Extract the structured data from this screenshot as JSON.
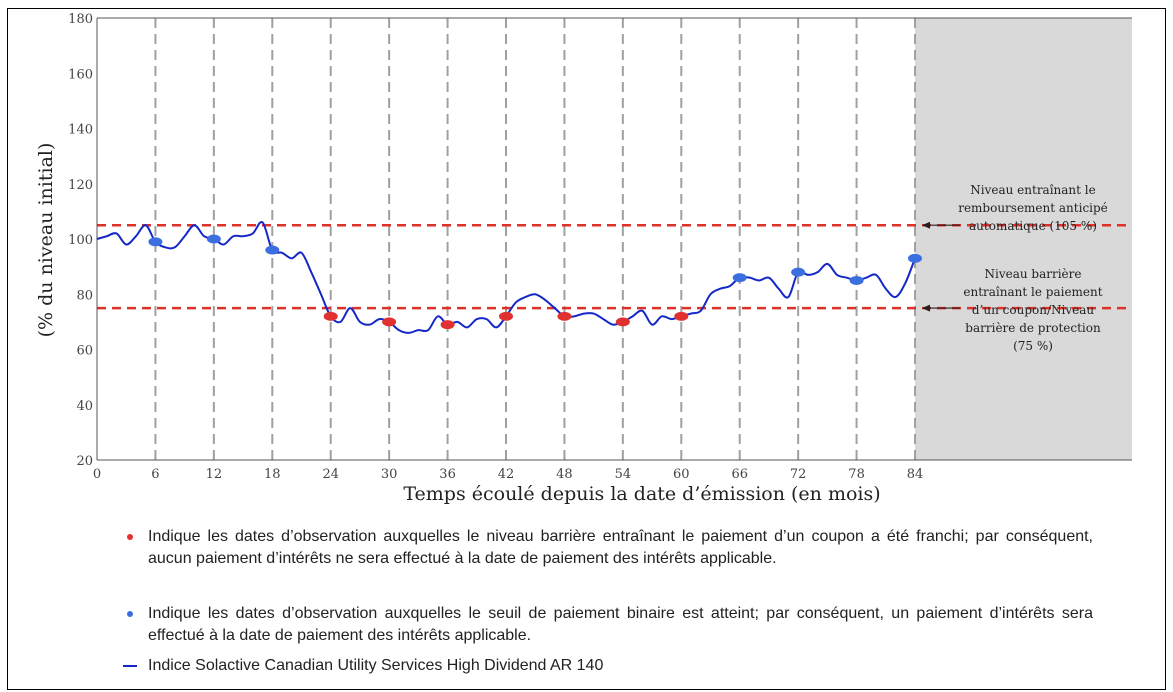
{
  "chart_data": {
    "type": "line",
    "xlabel": "Temps écoulé depuis la date d’émission (en mois)",
    "ylabel": "(% du niveau initial)",
    "xlim": [
      0,
      84
    ],
    "ylim": [
      20,
      180
    ],
    "xticks": [
      0,
      6,
      12,
      18,
      24,
      30,
      36,
      42,
      48,
      54,
      60,
      66,
      72,
      78,
      84
    ],
    "yticks": [
      20,
      40,
      60,
      80,
      100,
      120,
      140,
      160,
      180
    ],
    "observation_dates": [
      6,
      12,
      18,
      24,
      30,
      36,
      42,
      48,
      54,
      60,
      66,
      72,
      78,
      84
    ],
    "series": [
      {
        "name": "Indice Solactive Canadian Utility Services High Dividend AR 140",
        "color": "#1428c8",
        "x": [
          0,
          1,
          2,
          3,
          4,
          5,
          6,
          7,
          8,
          9,
          10,
          11,
          12,
          13,
          14,
          15,
          16,
          17,
          18,
          19,
          20,
          21,
          22,
          23,
          24,
          25,
          26,
          27,
          28,
          29,
          30,
          31,
          32,
          33,
          34,
          35,
          36,
          37,
          38,
          39,
          40,
          41,
          42,
          43,
          44,
          45,
          46,
          47,
          48,
          49,
          50,
          51,
          52,
          53,
          54,
          55,
          56,
          57,
          58,
          59,
          60,
          61,
          62,
          63,
          64,
          65,
          66,
          67,
          68,
          69,
          70,
          71,
          72,
          73,
          74,
          75,
          76,
          77,
          78,
          79,
          80,
          81,
          82,
          83,
          84
        ],
        "y": [
          100,
          101,
          102,
          98,
          101,
          105,
          99,
          97,
          97,
          101,
          105,
          101,
          100,
          98,
          101,
          101,
          102,
          106,
          96,
          95,
          93,
          95,
          88,
          80,
          72,
          70,
          75,
          70,
          69,
          71,
          70,
          67,
          66,
          67,
          67,
          72,
          69,
          70,
          68,
          71,
          71,
          68,
          72,
          77,
          79,
          80,
          78,
          75,
          72,
          72,
          73,
          73,
          71,
          69,
          70,
          72,
          74,
          69,
          72,
          71,
          72,
          73,
          74,
          80,
          82,
          83,
          86,
          86,
          85,
          86,
          82,
          79,
          88,
          87,
          88,
          91,
          87,
          86,
          85,
          86,
          87,
          82,
          79,
          84,
          93
        ]
      }
    ],
    "markers": {
      "red_observations": [
        {
          "x": 24,
          "y": 72
        },
        {
          "x": 30,
          "y": 70
        },
        {
          "x": 36,
          "y": 69
        },
        {
          "x": 42,
          "y": 72
        },
        {
          "x": 48,
          "y": 72
        },
        {
          "x": 54,
          "y": 70
        },
        {
          "x": 60,
          "y": 72
        }
      ],
      "blue_observations": [
        {
          "x": 6,
          "y": 99
        },
        {
          "x": 12,
          "y": 100
        },
        {
          "x": 18,
          "y": 96
        },
        {
          "x": 66,
          "y": 86
        },
        {
          "x": 72,
          "y": 88
        },
        {
          "x": 78,
          "y": 85
        },
        {
          "x": 84,
          "y": 93
        }
      ]
    },
    "thresholds": [
      {
        "value": 105,
        "label": [
          "Niveau entraînant le",
          "remboursement anticipé",
          "automatique (105 %)"
        ]
      },
      {
        "value": 75,
        "label": [
          "Niveau barrière",
          "entraînant le paiement",
          "d’un coupon/Niveau",
          "barrière de protection",
          "(75 %)"
        ]
      }
    ],
    "shaded_region": {
      "from": 84,
      "to": 91
    },
    "grid": "vertical dashed at observation dates",
    "colors": {
      "threshold": "#e0302a",
      "red_marker": "#e03030",
      "blue_marker": "#3b6fe0",
      "shade": "#d9d9d9",
      "grid": "#a0a0a0"
    }
  },
  "legend": {
    "red_text": "Indique les dates d’observation auxquelles le niveau barrière entraînant le paiement d’un coupon a été franchi; par conséquent, aucun paiement d’intérêts ne sera effectué à la date de paiement des intérêts applicable.",
    "blue_text": "Indique les dates d’observation auxquelles le seuil de paiement binaire est atteint; par conséquent, un paiement d’intérêts sera effectué à la date de paiement des intérêts applicable.",
    "line_text": "Indice Solactive Canadian Utility Services High Dividend AR 140",
    "red_color": "#e83030",
    "blue_color": "#3b6fe0",
    "line_color": "#1428c8"
  }
}
